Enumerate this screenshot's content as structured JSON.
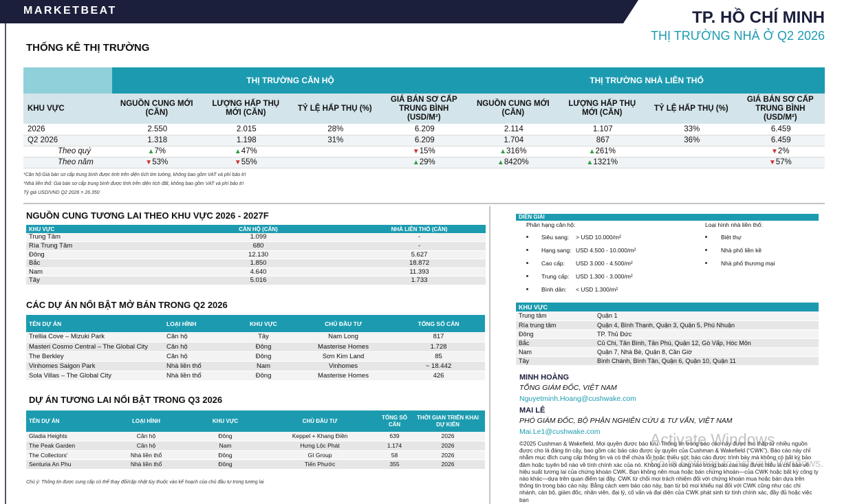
{
  "header": {
    "brand": "MARKETBEAT",
    "city": "TP. HỒ CHÍ MINH",
    "subtitle": "THỊ TRƯỜNG NHÀ Ở Q2 2026"
  },
  "market_stats": {
    "title": "THỐNG KÊ THỊ TRƯỜNG",
    "groups": [
      "THỊ TRƯỜNG CĂN HỘ",
      "THỊ TRƯỜNG NHÀ LIÊN THỔ"
    ],
    "columns": [
      "KHU VỰC",
      "NGUỒN CUNG MỚI (CĂN)",
      "LƯỢNG HẤP THỤ MỚI (CĂN)",
      "TỶ LỆ HẤP THỤ (%)",
      "GIÁ BÁN SƠ CẤP TRUNG BÌNH (USD/M²)",
      "NGUỒN CUNG MỚI (CĂN)",
      "LƯỢNG HẤP THỤ MỚI (CĂN)",
      "TỶ LỆ HẤP THỤ (%)",
      "GIÁ BÁN SƠ CẤP TRUNG BÌNH (USD/M²)"
    ],
    "rows": [
      [
        "2026",
        "2.550",
        "2.015",
        "28%",
        "6.209",
        "2.114",
        "1.107",
        "33%",
        "6.459"
      ],
      [
        "Q2 2026",
        "1.318",
        "1.198",
        "31%",
        "6.209",
        "1.704",
        "867",
        "36%",
        "6.459"
      ]
    ],
    "changes": [
      {
        "label": "Theo quý",
        "cells": [
          {
            "arrow": "▲",
            "value": "7%"
          },
          {
            "arrow": "▲",
            "value": "47%"
          },
          null,
          {
            "arrow": "▼",
            "value": "15%"
          },
          {
            "arrow": "▲",
            "value": "316%"
          },
          {
            "arrow": "▲",
            "value": "261%"
          },
          null,
          {
            "arrow": "▼",
            "value": "2%"
          }
        ]
      },
      {
        "label": "Theo năm",
        "cells": [
          {
            "arrow": "▼",
            "value": "53%"
          },
          {
            "arrow": "▼",
            "value": "55%"
          },
          null,
          {
            "arrow": "▲",
            "value": "29%"
          },
          {
            "arrow": "▲",
            "value": "8420%"
          },
          {
            "arrow": "▲",
            "value": "1321%"
          },
          null,
          {
            "arrow": "▼",
            "value": "57%"
          }
        ]
      }
    ],
    "notes": [
      "*Căn hộ:Giá bán sơ cấp trung bình được tính trên diện tích tim tường, không bao gồm VAT và phí bảo trì",
      "*Nhà liền thổ: Giá bán sơ cấp trung bình được tính trên diện tích đất, không bao gồm VAT và phí bảo trì",
      "Tỷ giá USD/VND Q2 2026 = 26.350"
    ]
  },
  "future_supply": {
    "title": "NGUỒN CUNG TƯƠNG LAI THEO KHU VỰC 2026 - 2027F",
    "columns": [
      "KHU VỰC",
      "CĂN HỘ (CĂN)",
      "NHÀ LIÊN THỔ (CĂN)"
    ],
    "rows": [
      [
        "Trung Tâm",
        "1.099",
        "-"
      ],
      [
        "Rìa Trung Tâm",
        "680",
        "-"
      ],
      [
        "Đông",
        "12.130",
        "5.627"
      ],
      [
        "Bắc",
        "1.850",
        "18.872"
      ],
      [
        "Nam",
        "4.640",
        "11.393"
      ],
      [
        "Tây",
        "5.016",
        "1.733"
      ]
    ]
  },
  "launched_projects": {
    "title": "CÁC DỰ ÁN NỔI BẬT MỞ BÁN TRONG Q2 2026",
    "columns": [
      "TÊN DỰ ÁN",
      "LOẠI HÌNH",
      "KHU VỰC",
      "CHỦ ĐẦU TƯ",
      "TỔNG SỐ CĂN"
    ],
    "rows": [
      [
        "Trellia Cove – Mizuki Park",
        "Căn hộ",
        "Tây",
        "Nam Long",
        "817"
      ],
      [
        "Masteri Cosmo Central – The Global City",
        "Căn hộ",
        "Đông",
        "Masterise Homes",
        "1.728"
      ],
      [
        "The Berkley",
        "Căn hộ",
        "Đông",
        "Sơn Kim Land",
        "85"
      ],
      [
        "Vinhomes Saigon Park",
        "Nhà liền thổ",
        "Nam",
        "Vinhomes",
        "~ 18.442"
      ],
      [
        "Sola Villas – The Global City",
        "Nhà liền thổ",
        "Đông",
        "Masterise Homes",
        "426"
      ]
    ]
  },
  "upcoming_projects": {
    "title": "DỰ ÁN TƯƠNG LAI NỔI BẬT TRONG Q3 2026",
    "columns": [
      "TÊN DỰ ÁN",
      "LOẠI HÌNH",
      "KHU VỰC",
      "CHỦ ĐẦU TƯ",
      "TỔNG SỐ CĂN",
      "THỜI GIAN TRIỂN KHAI DỰ KIẾN"
    ],
    "rows": [
      [
        "Gladia Heights",
        "Căn hộ",
        "Đông",
        "Keppel + Khang Điền",
        "639",
        "2026"
      ],
      [
        "The Peak Garden",
        "Căn hộ",
        "Nam",
        "Hưng Lộc Phát",
        "1.174",
        "2026"
      ],
      [
        "The Collectors'",
        "Nhà liền thổ",
        "Đông",
        "GI Group",
        "58",
        "2026"
      ],
      [
        "Senturia An Phu",
        "Nhà liền thổ",
        "Đông",
        "Tiến Phước",
        "355",
        "2026"
      ]
    ],
    "note": "Chú ý: Thông tin được cung cấp có thể thay đổi/cập nhật tùy thuộc vào kế hoạch của chủ đầu tư trong tương lai"
  },
  "legend": {
    "title": "DIỄN GIẢI",
    "apartment_heading": "Phân hạng căn hộ:",
    "apartment_grades": [
      {
        "name": "Siêu sang:",
        "range": "> USD 10.000/m²"
      },
      {
        "name": "Hạng sang:",
        "range": "USD 4.500 - 10.000/m²"
      },
      {
        "name": "Cao cấp:",
        "range": "USD 3.000 - 4.500/m²"
      },
      {
        "name": "Trung cấp:",
        "range": "USD 1.300 - 3.000/m²"
      },
      {
        "name": "Bình dân:",
        "range": "< USD 1.300/m²"
      }
    ],
    "landed_heading": "Loại hình nhà liền thổ:",
    "landed_types": [
      "Biệt thự",
      "Nhà phố liền kề",
      "Nhà phố thương mại"
    ]
  },
  "districts": {
    "columns": [
      "KHU VỰC"
    ],
    "rows": [
      [
        "Trung tâm",
        "Quận 1"
      ],
      [
        "Rìa trung tâm",
        "Quận 4, Bình Thạnh, Quận 3, Quận 5, Phú Nhuận"
      ],
      [
        "Đông",
        "TP. Thủ Đức"
      ],
      [
        "Bắc",
        "Củ Chi, Tân Bình, Tân Phú, Quận 12, Gò Vấp, Hóc Môn"
      ],
      [
        "Nam",
        "Quận 7, Nhà Bè, Quận 8, Cần Giờ"
      ],
      [
        "Tây",
        "Bình Chánh, Bình Tân, Quận 6, Quận 10, Quận 11"
      ]
    ]
  },
  "contacts": [
    {
      "name": "MINH HOÀNG",
      "role": "TỔNG GIÁM ĐỐC, VIỆT NAM",
      "email": "Nguyetminh.Hoang@cushwake.com"
    },
    {
      "name": "MAI LÊ",
      "role": "PHÓ GIÁM ĐỐC,  BỘ PHẬN NGHIÊN CỨU & TƯ VẤN, VIỆT NAM",
      "email": "Mai.Le1@cushwake.com"
    }
  ],
  "disclaimer": "©2025 Cushman & Wakefield. Mọi quyền được bảo lưu. Thông tin trong báo cáo này được thu thập từ nhiều nguồn được cho là đáng tin cậy, bao gồm các báo cáo được ủy quyền của Cushman & Wakefield (“CWK”). Báo cáo này chỉ nhằm mục đích cung cấp thông tin và có thể chứa lỗi hoặc thiếu sót; báo cáo được trình bày mà không có bất kỳ bảo đảm hoặc tuyên bố nào về tính chính xác của nó. Không có nội dung nào trong báo cáo này được hiểu là chỉ báo về hiệu suất tương lai của chứng khoán CWK. Bạn không nên mua hoặc bán chứng khoán—của CWK hoặc bất kỳ công ty nào khác—dựa trên quan điểm tại đây. CWK từ chối mọi trách nhiệm đối với chứng khoán mua hoặc bán dựa trên thông tin trong báo cáo này. Bằng cách xem báo cáo này, bạn từ bỏ mọi khiếu nại đối với CWK cũng như các chi nhánh, cán bộ, giám đốc, nhân viên, đại lý, cố vấn và đại diện của CWK phát sinh từ tính chính xác, đầy đủ hoặc việc bạn",
  "overlay": {
    "title": "Activate Windows",
    "text": "Go to Settings to activate Windows."
  }
}
